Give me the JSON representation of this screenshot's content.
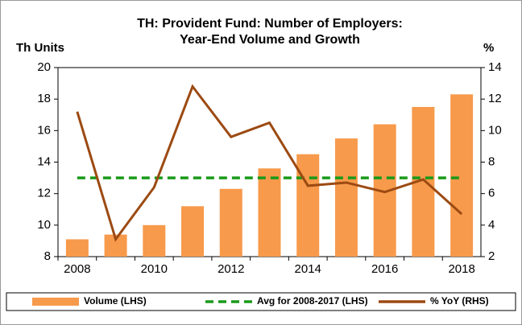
{
  "chart_data": {
    "type": "combo",
    "title": [
      "TH: Provident Fund: Number of Employers:",
      "Year-End Volume and Growth"
    ],
    "y_label": "Th Units",
    "y2_label": "%",
    "categories": [
      "2008",
      null,
      "2010",
      null,
      "2012",
      null,
      "2014",
      null,
      "2016",
      null,
      "2018"
    ],
    "ylim": [
      8,
      20
    ],
    "yticks": [
      8,
      10,
      12,
      14,
      16,
      18,
      20
    ],
    "y2lim": [
      2,
      14
    ],
    "y2ticks": [
      2,
      4,
      6,
      8,
      10,
      12,
      14
    ],
    "legend": "bottom",
    "series": [
      {
        "name": "Volume (LHS)",
        "type": "bar",
        "color": "#f79a4b",
        "axis": "y",
        "values": [
          9.1,
          9.4,
          10.0,
          11.2,
          12.3,
          13.6,
          14.5,
          15.5,
          16.4,
          17.5,
          18.3
        ]
      },
      {
        "name": "Avg for 2008-2017 (LHS)",
        "type": "line",
        "dash": true,
        "color": "#1a9a1a",
        "axis": "y",
        "values": [
          13,
          13,
          13,
          13,
          13,
          13,
          13,
          13,
          13,
          13,
          13
        ]
      },
      {
        "name": "% YoY (RHS)",
        "type": "line",
        "dash": false,
        "color": "#9c4a12",
        "axis": "y2",
        "values": [
          11.2,
          3.1,
          6.4,
          12.8,
          9.6,
          10.5,
          6.5,
          6.7,
          6.1,
          6.9,
          4.7
        ]
      }
    ]
  }
}
